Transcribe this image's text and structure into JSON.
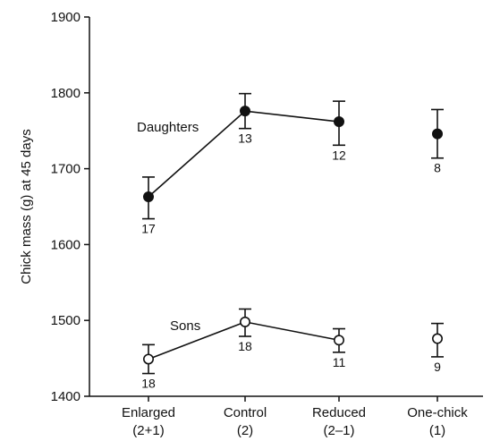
{
  "chart_data": {
    "type": "line",
    "title": "",
    "xlabel": "",
    "ylabel": "Chick mass (g) at 45 days",
    "ylim": [
      1400,
      1900
    ],
    "yticks": [
      1400,
      1500,
      1600,
      1700,
      1800,
      1900
    ],
    "grid": false,
    "legend": "none",
    "categories": [
      [
        "Enlarged",
        "(2+1)"
      ],
      [
        "Control",
        "(2)"
      ],
      [
        "Reduced",
        "(2–1)"
      ],
      [
        "One-chick",
        "(1)"
      ]
    ],
    "series": [
      {
        "name": "Daughters",
        "marker": "filled-circle",
        "values": [
          1663,
          1776,
          1762,
          1746
        ],
        "err_low": [
          1634,
          1753,
          1731,
          1714
        ],
        "err_high": [
          1689,
          1799,
          1789,
          1778
        ],
        "n": [
          "17",
          "13",
          "12",
          "8"
        ],
        "connected": [
          true,
          true,
          true,
          false
        ]
      },
      {
        "name": "Sons",
        "marker": "open-circle",
        "values": [
          1449,
          1498,
          1474,
          1476
        ],
        "err_low": [
          1430,
          1479,
          1458,
          1452
        ],
        "err_high": [
          1468,
          1515,
          1489,
          1496
        ],
        "n": [
          "18",
          "18",
          "11",
          "9"
        ],
        "connected": [
          true,
          true,
          true,
          false
        ]
      }
    ]
  }
}
